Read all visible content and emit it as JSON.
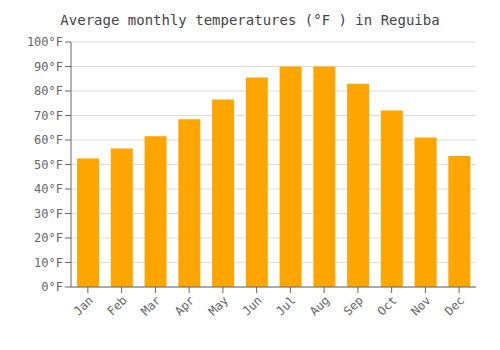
{
  "chart_data": {
    "type": "bar",
    "title": "Average monthly temperatures (°F ) in Reguiba",
    "categories": [
      "Jan",
      "Feb",
      "Mar",
      "Apr",
      "May",
      "Jun",
      "Jul",
      "Aug",
      "Sep",
      "Oct",
      "Nov",
      "Dec"
    ],
    "values": [
      52.5,
      56.5,
      61.5,
      68.5,
      76.5,
      85.5,
      90.0,
      90.0,
      83.0,
      72.0,
      61.0,
      53.5
    ],
    "color": "#FFA500",
    "ylim": [
      0,
      100
    ],
    "yticks": [
      {
        "value": 0,
        "label": "0°F"
      },
      {
        "value": 10,
        "label": "10°F"
      },
      {
        "value": 20,
        "label": "20°F"
      },
      {
        "value": 30,
        "label": "30°F"
      },
      {
        "value": 40,
        "label": "40°F"
      },
      {
        "value": 50,
        "label": "50°F"
      },
      {
        "value": 60,
        "label": "60°F"
      },
      {
        "value": 70,
        "label": "70°F"
      },
      {
        "value": 80,
        "label": "80°F"
      },
      {
        "value": 90,
        "label": "90°F"
      },
      {
        "value": 100,
        "label": "100°F"
      }
    ],
    "grid": true
  }
}
